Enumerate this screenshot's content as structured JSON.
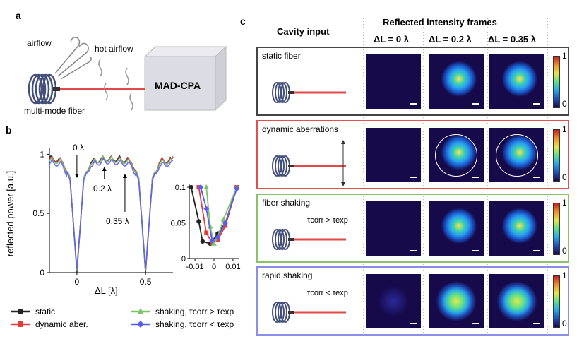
{
  "panel_a": {
    "letter": "a",
    "labels": {
      "airflow": "airflow",
      "hot_airflow": "hot airflow",
      "device": "MAD-CPA",
      "fiber": "multi-mode fiber"
    }
  },
  "panel_b": {
    "letter": "b",
    "ylabel": "reflected power [a.u.]",
    "xlabel": "ΔL [λ]",
    "yticks": [
      "0",
      "0.5",
      "1"
    ],
    "xticks": [
      "0",
      "0.5"
    ],
    "annotations": [
      "0 λ",
      "0.2 λ",
      "0.35 λ"
    ],
    "inset": {
      "yticks": [
        "0",
        "0.05",
        "0.1"
      ],
      "xticks": [
        "-0.01",
        "0",
        "0.01"
      ]
    },
    "legend": {
      "static": "static",
      "dynamic": "dynamic aber.",
      "shaking_slow": "shaking, τcorr > τexp",
      "shaking_fast": "shaking, τcorr < τexp"
    },
    "colors": {
      "static": "#222222",
      "dynamic": "#e23b3b",
      "shaking_slow": "#7fc46a",
      "shaking_fast": "#5a5ef0"
    }
  },
  "panel_c": {
    "letter": "c",
    "col_header_input": "Cavity input",
    "col_header_frames": "Reflected intensity frames",
    "dl_headers": [
      "ΔL = 0 λ",
      "ΔL = 0.2 λ",
      "ΔL = 0.35 λ"
    ],
    "colorbar_ticks": [
      "1",
      "0"
    ],
    "rows": [
      {
        "label": "static fiber",
        "border": "#444444"
      },
      {
        "label": "dynamic aberrations",
        "border": "#e05050"
      },
      {
        "label": "fiber shaking",
        "sublabel": "τcorr > τexp",
        "border": "#8cc06a"
      },
      {
        "label": "rapid shaking",
        "sublabel": "τcorr < τexp",
        "border": "#8c8ee8"
      }
    ]
  },
  "chart_data": [
    {
      "type": "line",
      "xlabel": "ΔL [λ]",
      "ylabel": "reflected power [a.u.]",
      "xlim": [
        -0.2,
        0.7
      ],
      "ylim": [
        0,
        1.05
      ],
      "series": [
        {
          "name": "static",
          "x": [
            -0.2,
            -0.1,
            -0.05,
            0,
            0.05,
            0.1,
            0.2,
            0.3,
            0.4,
            0.45,
            0.5,
            0.55,
            0.6,
            0.7
          ],
          "values": [
            1.0,
            0.97,
            0.8,
            0.0,
            0.8,
            0.97,
            0.99,
            0.99,
            0.97,
            0.8,
            0.0,
            0.8,
            0.97,
            0.98
          ]
        },
        {
          "name": "dynamic aber.",
          "x": [
            -0.2,
            -0.1,
            -0.05,
            0,
            0.05,
            0.1,
            0.2,
            0.3,
            0.4,
            0.45,
            0.5,
            0.55,
            0.6,
            0.7
          ],
          "values": [
            0.99,
            0.97,
            0.8,
            0.02,
            0.8,
            0.96,
            0.99,
            0.98,
            0.97,
            0.8,
            0.02,
            0.8,
            0.97,
            0.98
          ]
        },
        {
          "name": "shaking, τcorr > τexp",
          "x": [
            -0.2,
            -0.1,
            -0.05,
            0,
            0.05,
            0.1,
            0.2,
            0.3,
            0.4,
            0.45,
            0.5,
            0.55,
            0.6,
            0.7
          ],
          "values": [
            0.98,
            0.96,
            0.8,
            0.02,
            0.8,
            0.96,
            0.99,
            0.98,
            0.96,
            0.8,
            0.02,
            0.8,
            0.96,
            0.97
          ]
        },
        {
          "name": "shaking, τcorr < τexp",
          "x": [
            -0.2,
            -0.1,
            -0.05,
            0,
            0.05,
            0.1,
            0.2,
            0.3,
            0.4,
            0.45,
            0.5,
            0.55,
            0.6,
            0.7
          ],
          "values": [
            0.96,
            0.94,
            0.78,
            0.03,
            0.78,
            0.94,
            0.97,
            0.96,
            0.94,
            0.78,
            0.03,
            0.78,
            0.94,
            0.95
          ]
        }
      ]
    },
    {
      "type": "line",
      "xlim": [
        -0.013,
        0.013
      ],
      "ylim": [
        0,
        0.105
      ],
      "series": [
        {
          "name": "static",
          "x": [
            -0.012,
            -0.008,
            -0.006,
            -0.002,
            0.002,
            0.006,
            0.012
          ],
          "values": [
            0.1,
            0.052,
            0.024,
            0.021,
            0.035,
            0.05,
            0.1
          ]
        },
        {
          "name": "dynamic aber.",
          "x": [
            -0.008,
            -0.004,
            -0.001,
            0.002,
            0.006,
            0.012
          ],
          "values": [
            0.1,
            0.036,
            0.022,
            0.026,
            0.046,
            0.1
          ]
        },
        {
          "name": "shaking, τcorr > τexp",
          "x": [
            -0.004,
            -0.002,
            0.0,
            0.002,
            0.005,
            0.012
          ],
          "values": [
            0.1,
            0.045,
            0.021,
            0.03,
            0.055,
            0.1
          ]
        },
        {
          "name": "shaking, τcorr < τexp",
          "x": [
            -0.007,
            -0.004,
            -0.001,
            0.002,
            0.006,
            0.012
          ],
          "values": [
            0.1,
            0.07,
            0.025,
            0.03,
            0.05,
            0.098
          ]
        }
      ]
    }
  ]
}
